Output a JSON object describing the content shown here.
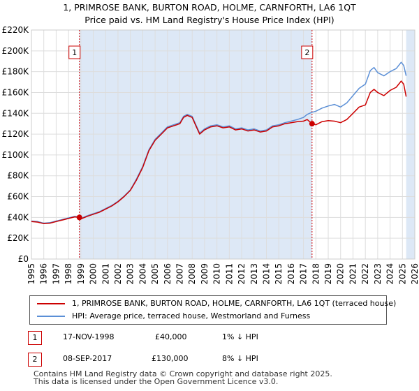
{
  "title_line1": "1, PRIMROSE BANK, BURTON ROAD, HOLME, CARNFORTH, LA6 1QT",
  "title_line2": "Price paid vs. HM Land Registry's House Price Index (HPI)",
  "colors": {
    "property": "#cc0000",
    "hpi": "#5b8fd6",
    "marker": "#cc0000",
    "shade": "#dde8f6",
    "grid": "#dddddd"
  },
  "chart_data": {
    "type": "line",
    "title": "Price paid vs. HM Land Registry's House Price Index (HPI)",
    "xlim": [
      1995,
      2026
    ],
    "ylim": [
      0,
      220000
    ],
    "x_ticks": [
      1995,
      1996,
      1997,
      1998,
      1999,
      2000,
      2001,
      2002,
      2003,
      2004,
      2005,
      2006,
      2007,
      2008,
      2009,
      2010,
      2011,
      2012,
      2013,
      2014,
      2015,
      2016,
      2017,
      2018,
      2019,
      2020,
      2021,
      2022,
      2023,
      2024,
      2025,
      2026
    ],
    "x_tick_labels": [
      "1995",
      "1996",
      "1997",
      "1998",
      "1999",
      "2000",
      "2001",
      "2002",
      "2003",
      "2004",
      "2005",
      "2006",
      "2007",
      "2008",
      "2009",
      "2010",
      "2011",
      "2012",
      "2013",
      "2014",
      "2015",
      "2016",
      "2017",
      "2018",
      "2019",
      "2020",
      "2021",
      "2022",
      "2023",
      "2024",
      "2025",
      "2026"
    ],
    "y_ticks": [
      0,
      20000,
      40000,
      60000,
      80000,
      100000,
      120000,
      140000,
      160000,
      180000,
      200000,
      220000
    ],
    "y_tick_labels": [
      "£0",
      "£20K",
      "£40K",
      "£60K",
      "£80K",
      "£100K",
      "£120K",
      "£140K",
      "£160K",
      "£180K",
      "£200K",
      "£220K"
    ],
    "grid": true,
    "shaded_ranges": [
      [
        1998.88,
        2017.69
      ],
      [
        2025.3,
        2026
      ]
    ],
    "series": [
      {
        "name": "1, PRIMROSE BANK, BURTON ROAD, HOLME, CARNFORTH, LA6 1QT (terraced house)",
        "color": "#cc0000",
        "x": [
          1995,
          1995.5,
          1996,
          1996.5,
          1997,
          1997.5,
          1998,
          1998.5,
          1998.88,
          1999,
          1999.5,
          2000,
          2000.5,
          2001,
          2001.5,
          2002,
          2002.5,
          2003,
          2003.5,
          2004,
          2004.5,
          2005,
          2005.5,
          2006,
          2006.5,
          2007,
          2007.3,
          2007.6,
          2008,
          2008.3,
          2008.6,
          2009,
          2009.5,
          2010,
          2010.5,
          2011,
          2011.5,
          2012,
          2012.5,
          2013,
          2013.5,
          2014,
          2014.5,
          2015,
          2015.5,
          2016,
          2016.5,
          2017,
          2017.3,
          2017.69,
          2018,
          2018.5,
          2019,
          2019.5,
          2020,
          2020.5,
          2021,
          2021.5,
          2022,
          2022.4,
          2022.7,
          2023,
          2023.5,
          2024,
          2024.5,
          2024.9,
          2025.1,
          2025.3
        ],
        "y": [
          36000,
          35500,
          34000,
          34500,
          36000,
          37500,
          39000,
          40500,
          40000,
          38500,
          41000,
          43000,
          45000,
          48000,
          51000,
          55000,
          60000,
          66000,
          76000,
          88000,
          104000,
          114000,
          120000,
          126000,
          128000,
          130000,
          136000,
          138000,
          136000,
          128000,
          120000,
          124000,
          127000,
          128000,
          126000,
          127000,
          124000,
          125000,
          123000,
          124000,
          122000,
          123000,
          127000,
          128000,
          130000,
          131000,
          132000,
          132500,
          134000,
          130000,
          129000,
          132000,
          133000,
          132500,
          131000,
          134000,
          140000,
          146000,
          148000,
          160000,
          163000,
          160000,
          157000,
          162000,
          165000,
          171000,
          168000,
          156000
        ]
      },
      {
        "name": "HPI: Average price, terraced house, Westmorland and Furness",
        "color": "#5b8fd6",
        "x": [
          1995,
          1995.5,
          1996,
          1996.5,
          1997,
          1997.5,
          1998,
          1998.5,
          1998.88,
          1999,
          1999.5,
          2000,
          2000.5,
          2001,
          2001.5,
          2002,
          2002.5,
          2003,
          2003.5,
          2004,
          2004.5,
          2005,
          2005.5,
          2006,
          2006.5,
          2007,
          2007.3,
          2007.6,
          2008,
          2008.3,
          2008.6,
          2009,
          2009.5,
          2010,
          2010.5,
          2011,
          2011.5,
          2012,
          2012.5,
          2013,
          2013.5,
          2014,
          2014.5,
          2015,
          2015.5,
          2016,
          2016.5,
          2017,
          2017.3,
          2017.69,
          2018,
          2018.5,
          2019,
          2019.5,
          2020,
          2020.5,
          2021,
          2021.5,
          2022,
          2022.4,
          2022.7,
          2023,
          2023.5,
          2024,
          2024.5,
          2024.9,
          2025.1,
          2025.3
        ],
        "y": [
          36500,
          36000,
          34500,
          35000,
          36500,
          38000,
          39500,
          41000,
          40500,
          39000,
          41500,
          43500,
          45500,
          48500,
          51500,
          55500,
          60500,
          66500,
          77000,
          89000,
          105000,
          115000,
          121000,
          127000,
          129000,
          131000,
          137000,
          139000,
          137000,
          129000,
          121000,
          125000,
          128000,
          129000,
          127000,
          128000,
          125000,
          126000,
          124000,
          125000,
          123000,
          124000,
          128000,
          129000,
          131000,
          132500,
          134000,
          136000,
          139000,
          141000,
          142000,
          145000,
          147000,
          148500,
          146000,
          150000,
          157000,
          164000,
          168000,
          181000,
          184000,
          179000,
          176000,
          180000,
          183000,
          189000,
          186000,
          176000
        ]
      }
    ],
    "annotations": [
      {
        "label": "1",
        "x": 1998.88,
        "y": 40000
      },
      {
        "label": "2",
        "x": 2017.69,
        "y": 130000
      }
    ]
  },
  "legend": {
    "property_label": "1, PRIMROSE BANK, BURTON ROAD, HOLME, CARNFORTH, LA6 1QT (terraced house)",
    "hpi_label": "HPI: Average price, terraced house, Westmorland and Furness"
  },
  "transactions": [
    {
      "num": "1",
      "date": "17-NOV-1998",
      "price": "£40,000",
      "hpi": "1% ↓ HPI"
    },
    {
      "num": "2",
      "date": "08-SEP-2017",
      "price": "£130,000",
      "hpi": "8% ↓ HPI"
    }
  ],
  "footer": {
    "line1": "Contains HM Land Registry data © Crown copyright and database right 2025.",
    "line2": "This data is licensed under the Open Government Licence v3.0."
  }
}
